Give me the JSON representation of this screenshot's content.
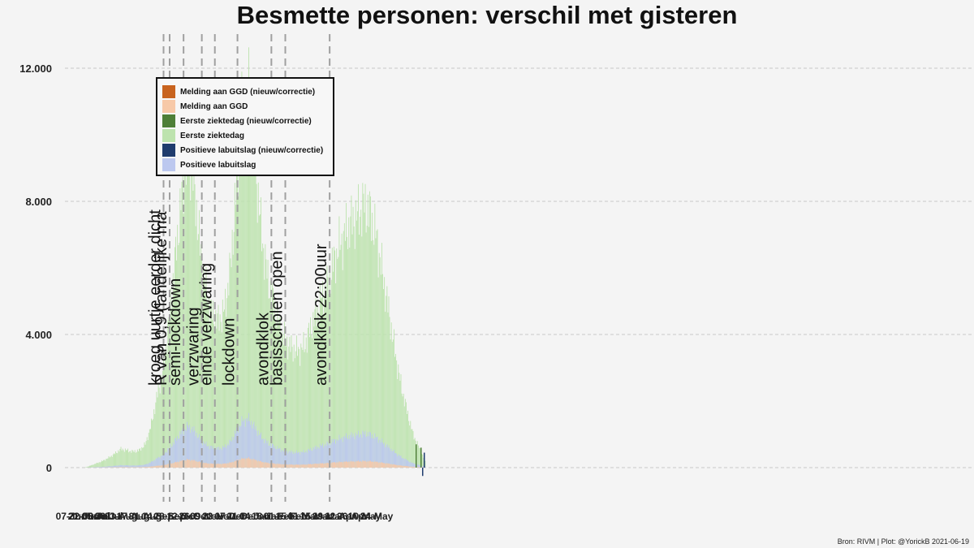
{
  "chart_data": {
    "type": "bar",
    "title": "Besmette personen: verschil met gisteren",
    "xlabel": "",
    "ylabel": "",
    "ylim": [
      -1000,
      12800
    ],
    "y_ticks": [
      0,
      4000,
      8000,
      12000
    ],
    "y_tick_labels": [
      "0",
      "4.000",
      "8.000",
      "12.000"
    ],
    "x_tick_labels": [
      "22-Jun",
      "06-Jul",
      "20-Jul",
      "03-Aug",
      "17-Aug",
      "31-Aug",
      "14-Sep",
      "28-Sep",
      "12-Oct",
      "26-Oct",
      "09-Nov",
      "23-Nov",
      "07-Dec",
      "21-Dec",
      "04-Jan",
      "18-Jan",
      "01-Feb",
      "15-Feb",
      "01-Mar",
      "15-Mar",
      "29-Mar",
      "12-Apr",
      "26-Apr",
      "10-May",
      "24-May",
      "07-Jun",
      "21-Jun",
      "05-Jul"
    ],
    "legend_position": "top-left",
    "grid": "horizontal dashed",
    "series": [
      {
        "name": "Melding aan GGD (nieuw/correctie)",
        "color": "#c8631e"
      },
      {
        "name": "Melding aan GGD",
        "color": "#f7c9a8"
      },
      {
        "name": "Eerste ziektedag (nieuw/correctie)",
        "color": "#4e7f37"
      },
      {
        "name": "Eerste ziektedag",
        "color": "#bde3ae"
      },
      {
        "name": "Positieve labuitslag (nieuw/correctie)",
        "color": "#1f3c6e"
      },
      {
        "name": "Positieve labuitslag",
        "color": "#bcc8ef"
      }
    ],
    "first_ziektedag_weekly_approx": {
      "weeks_from": "22-Jun",
      "values": [
        0,
        60,
        130,
        200,
        300,
        420,
        560,
        520,
        480,
        520,
        700,
        1300,
        2200,
        3000,
        4600,
        6400,
        8200,
        9600,
        8600,
        6600,
        5300,
        4600,
        4400,
        4700,
        6000,
        8600,
        10800,
        11200,
        9300,
        7200,
        5800,
        5000,
        4300,
        3800,
        3600,
        3500,
        3600,
        4100,
        4600,
        5100,
        5500,
        6200,
        6700,
        7100,
        7400,
        7600,
        7900,
        7600,
        6900,
        5800,
        4700,
        3500,
        2500,
        1700,
        1000,
        600,
        200
      ]
    },
    "annotations": [
      {
        "date": "21-Sep",
        "label": "kroeg uurtje eerder dicht"
      },
      {
        "date": "28-Sep",
        "label": "R van 0,9 (landelijke ma"
      },
      {
        "date": "14-Oct",
        "label": "semi-lockdown"
      },
      {
        "date": "04-Nov",
        "label": "verzwaring"
      },
      {
        "date": "19-Nov",
        "label": "einde verzwaring"
      },
      {
        "date": "15-Dec",
        "label": "lockdown"
      },
      {
        "date": "23-Jan",
        "label": "avondklok"
      },
      {
        "date": "08-Feb",
        "label": "basisscholen open"
      },
      {
        "date": "31-Mar",
        "label": "avondklok 22:00uur"
      }
    ],
    "caption": "Bron: RIVM | Plot: @YorickB  2021-06-19"
  }
}
